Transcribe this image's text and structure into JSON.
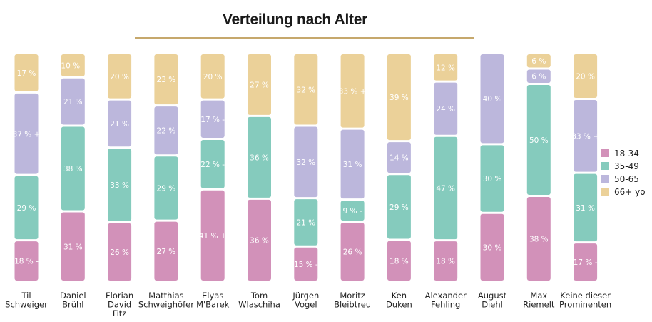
{
  "chart_data": {
    "type": "bar",
    "stacked": true,
    "normalized_percent": true,
    "title": "Verteilung nach Alter",
    "categories": [
      "Til Schweiger",
      "Daniel Brühl",
      "Florian David Fitz",
      "Matthias Schweighöfer",
      "Elyas M'Barek",
      "Tom Wlaschiha",
      "Jürgen Vogel",
      "Moritz Bleibtreu",
      "Ken Duken",
      "Alexander Fehling",
      "August Diehl",
      "Max Riemelt",
      "Keine dieser Prominenten"
    ],
    "category_lines": [
      [
        "Til",
        "Schweiger"
      ],
      [
        "Daniel",
        "Brühl"
      ],
      [
        "Florian",
        "David",
        "Fitz"
      ],
      [
        "Matthias",
        "Schweighöfer"
      ],
      [
        "Elyas",
        "M'Barek"
      ],
      [
        "Tom",
        "Wlaschiha"
      ],
      [
        "Jürgen",
        "Vogel"
      ],
      [
        "Moritz",
        "Bleibtreu"
      ],
      [
        "Ken",
        "Duken"
      ],
      [
        "Alexander",
        "Fehling"
      ],
      [
        "August",
        "Diehl"
      ],
      [
        "Max",
        "Riemelt"
      ],
      [
        "Keine dieser",
        "Prominenten"
      ]
    ],
    "series": [
      {
        "name": "18-34",
        "color": "#d291b9",
        "values": [
          18,
          31,
          26,
          27,
          41,
          36,
          15,
          26,
          18,
          18,
          30,
          38,
          17
        ]
      },
      {
        "name": "35-49",
        "color": "#85cbbd",
        "values": [
          29,
          38,
          33,
          29,
          22,
          36,
          21,
          9,
          29,
          47,
          30,
          50,
          31
        ]
      },
      {
        "name": "50-65",
        "color": "#bcb7dc",
        "values": [
          37,
          21,
          21,
          22,
          17,
          0,
          32,
          31,
          14,
          24,
          40,
          6,
          33
        ]
      },
      {
        "name": "66+ yo",
        "color": "#ebd199",
        "values": [
          17,
          10,
          20,
          23,
          20,
          27,
          32,
          33,
          39,
          12,
          0,
          6,
          20
        ]
      }
    ],
    "segment_labels": [
      [
        "18 % -",
        "31 %",
        "26 %",
        "27 %",
        "41 % +",
        "36 %",
        "15 % -",
        "26 %",
        "18 %",
        "18 %",
        "30 %",
        "38 %",
        "17 % -"
      ],
      [
        "29 %",
        "38 %",
        "33 %",
        "29 %",
        "22 % -",
        "36 %",
        "21 %",
        "9 % -",
        "29 %",
        "47 %",
        "30 %",
        "50 %",
        "31 %"
      ],
      [
        "37 % +",
        "21 %",
        "21 %",
        "22 %",
        "17 % -",
        "",
        "32 %",
        "31 %",
        "14 %",
        "24 %",
        "40 %",
        "6 %",
        "33 % +"
      ],
      [
        "17 %",
        "10 % -",
        "20 %",
        "23 %",
        "20 %",
        "27 %",
        "32 %",
        "33 % +",
        "39 %",
        "12 %",
        "",
        "6 %",
        "20 %"
      ]
    ],
    "legend_position": "right",
    "grid": false,
    "xlabel": "",
    "ylabel": ""
  }
}
